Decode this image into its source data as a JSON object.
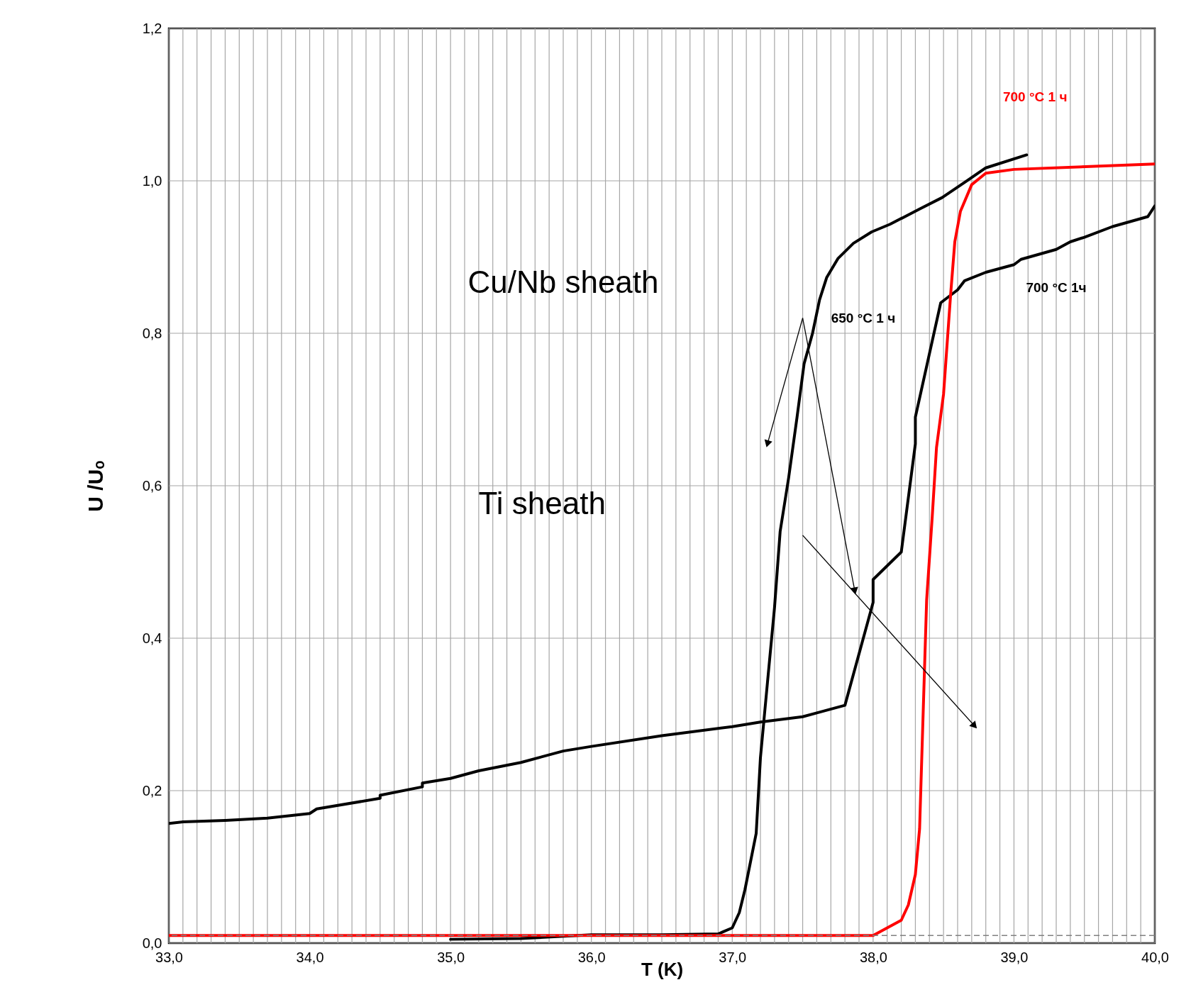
{
  "chart_data": {
    "type": "line",
    "xlabel": "T (K)",
    "ylabel": "U /Uₒ",
    "annotations": [
      "Cu/Nb sheath",
      "Ti sheath"
    ],
    "xlim": [
      33,
      40
    ],
    "ylim": [
      0,
      1.2
    ],
    "xticks": [
      {
        "value": 33,
        "label": "33,0"
      },
      {
        "value": 33.1,
        "label": null
      },
      {
        "value": 33.2,
        "label": null
      },
      {
        "value": 33.3,
        "label": null
      },
      {
        "value": 33.4,
        "label": null
      },
      {
        "value": 33.5,
        "label": null
      },
      {
        "value": 33.6,
        "label": null
      },
      {
        "value": 33.7,
        "label": null
      },
      {
        "value": 33.8,
        "label": null
      },
      {
        "value": 33.9,
        "label": null
      },
      {
        "value": 34,
        "label": "34,0"
      },
      {
        "value": 34.1,
        "label": null
      },
      {
        "value": 34.2,
        "label": null
      },
      {
        "value": 34.3,
        "label": null
      },
      {
        "value": 34.4,
        "label": null
      },
      {
        "value": 34.5,
        "label": null
      },
      {
        "value": 34.6,
        "label": null
      },
      {
        "value": 34.7,
        "label": null
      },
      {
        "value": 34.8,
        "label": null
      },
      {
        "value": 34.9,
        "label": null
      },
      {
        "value": 35,
        "label": "35,0"
      },
      {
        "value": 35.1,
        "label": null
      },
      {
        "value": 35.2,
        "label": null
      },
      {
        "value": 35.3,
        "label": null
      },
      {
        "value": 35.4,
        "label": null
      },
      {
        "value": 35.5,
        "label": null
      },
      {
        "value": 35.6,
        "label": null
      },
      {
        "value": 35.7,
        "label": null
      },
      {
        "value": 35.8,
        "label": null
      },
      {
        "value": 35.9,
        "label": null
      },
      {
        "value": 36,
        "label": "36,0"
      },
      {
        "value": 36.1,
        "label": null
      },
      {
        "value": 36.2,
        "label": null
      },
      {
        "value": 36.3,
        "label": null
      },
      {
        "value": 36.4,
        "label": null
      },
      {
        "value": 36.5,
        "label": null
      },
      {
        "value": 36.6,
        "label": null
      },
      {
        "value": 36.7,
        "label": null
      },
      {
        "value": 36.8,
        "label": null
      },
      {
        "value": 36.9,
        "label": null
      },
      {
        "value": 37,
        "label": "37,0"
      },
      {
        "value": 37.1,
        "label": null
      },
      {
        "value": 37.2,
        "label": null
      },
      {
        "value": 37.3,
        "label": null
      },
      {
        "value": 37.4,
        "label": null
      },
      {
        "value": 37.5,
        "label": null
      },
      {
        "value": 37.6,
        "label": null
      },
      {
        "value": 37.7,
        "label": null
      },
      {
        "value": 37.8,
        "label": null
      },
      {
        "value": 37.9,
        "label": null
      },
      {
        "value": 38,
        "label": "38,0"
      },
      {
        "value": 38.1,
        "label": null
      },
      {
        "value": 38.2,
        "label": null
      },
      {
        "value": 38.3,
        "label": null
      },
      {
        "value": 38.4,
        "label": null
      },
      {
        "value": 38.5,
        "label": null
      },
      {
        "value": 38.6,
        "label": null
      },
      {
        "value": 38.7,
        "label": null
      },
      {
        "value": 38.8,
        "label": null
      },
      {
        "value": 38.9,
        "label": null
      },
      {
        "value": 39,
        "label": "39,0"
      },
      {
        "value": 39.1,
        "label": null
      },
      {
        "value": 39.2,
        "label": null
      },
      {
        "value": 39.3,
        "label": null
      },
      {
        "value": 39.4,
        "label": null
      },
      {
        "value": 39.5,
        "label": null
      },
      {
        "value": 39.6,
        "label": null
      },
      {
        "value": 39.7,
        "label": null
      },
      {
        "value": 39.8,
        "label": null
      },
      {
        "value": 39.9,
        "label": null
      },
      {
        "value": 40,
        "label": "40,0"
      }
    ],
    "yticks": [
      {
        "value": 0,
        "label": "0,0"
      },
      {
        "value": 0.2,
        "label": "0,2"
      },
      {
        "value": 0.4,
        "label": "0,4"
      },
      {
        "value": 0.6,
        "label": "0,6"
      },
      {
        "value": 0.8,
        "label": "0,8"
      },
      {
        "value": 1,
        "label": "1,0"
      },
      {
        "value": 1.2,
        "label": "1,2"
      }
    ],
    "grid": true,
    "marker": "none",
    "line_style": "solid",
    "ref_lines": [
      {
        "axis": "y",
        "value": 0.01,
        "label": null,
        "color": "#808080",
        "line_style": "dashed"
      }
    ],
    "series": [
      {
        "name": "650 °C 1 ч",
        "color": "#000000",
        "x": [
          35.0,
          35.5,
          36.0,
          36.5,
          36.9,
          37.0,
          37.05,
          37.09,
          37.17,
          37.2,
          37.25,
          37.3,
          37.34,
          37.4,
          37.46,
          37.51,
          37.57,
          37.62,
          37.67,
          37.75,
          37.86,
          37.99,
          38.12,
          38.33,
          38.49,
          38.65,
          38.8,
          39.09
        ],
        "values": [
          0.005,
          0.006,
          0.011,
          0.011,
          0.012,
          0.02,
          0.04,
          0.07,
          0.144,
          0.243,
          0.342,
          0.44,
          0.54,
          0.61,
          0.69,
          0.76,
          0.8,
          0.844,
          0.873,
          0.898,
          0.918,
          0.933,
          0.943,
          0.963,
          0.978,
          0.998,
          1.017,
          1.034
        ]
      },
      {
        "name": "700 °C 1ч",
        "color": "#000000",
        "x": [
          33.0,
          33.1,
          33.4,
          33.7,
          34.0,
          34.05,
          34.5,
          34.5,
          34.8,
          34.8,
          35.0,
          35.2,
          35.5,
          35.8,
          36.0,
          36.5,
          37.0,
          37.2,
          37.5,
          37.6,
          37.8,
          38.0,
          38.0,
          38.2,
          38.3,
          38.3,
          38.48,
          38.6,
          38.65,
          38.8,
          39.0,
          39.05,
          39.3,
          39.4,
          39.5,
          39.7,
          39.95,
          40.0
        ],
        "values": [
          0.157,
          0.159,
          0.161,
          0.164,
          0.17,
          0.176,
          0.19,
          0.194,
          0.205,
          0.21,
          0.216,
          0.226,
          0.237,
          0.252,
          0.258,
          0.272,
          0.284,
          0.29,
          0.297,
          0.302,
          0.312,
          0.447,
          0.477,
          0.513,
          0.655,
          0.69,
          0.84,
          0.857,
          0.869,
          0.88,
          0.89,
          0.897,
          0.91,
          0.92,
          0.926,
          0.94,
          0.953,
          0.967
        ]
      },
      {
        "name": "700 °C 1 ч",
        "color": "#ff0000",
        "x": [
          33.0,
          38.0,
          38.1,
          38.2,
          38.25,
          38.3,
          38.33,
          38.355,
          38.38,
          38.42,
          38.45,
          38.5,
          38.55,
          38.58,
          38.62,
          38.7,
          38.8,
          39.0,
          40.0
        ],
        "values": [
          0.01,
          0.01,
          0.02,
          0.03,
          0.05,
          0.09,
          0.15,
          0.3,
          0.45,
          0.56,
          0.65,
          0.72,
          0.85,
          0.92,
          0.96,
          0.995,
          1.01,
          1.015,
          1.022
        ]
      }
    ]
  }
}
